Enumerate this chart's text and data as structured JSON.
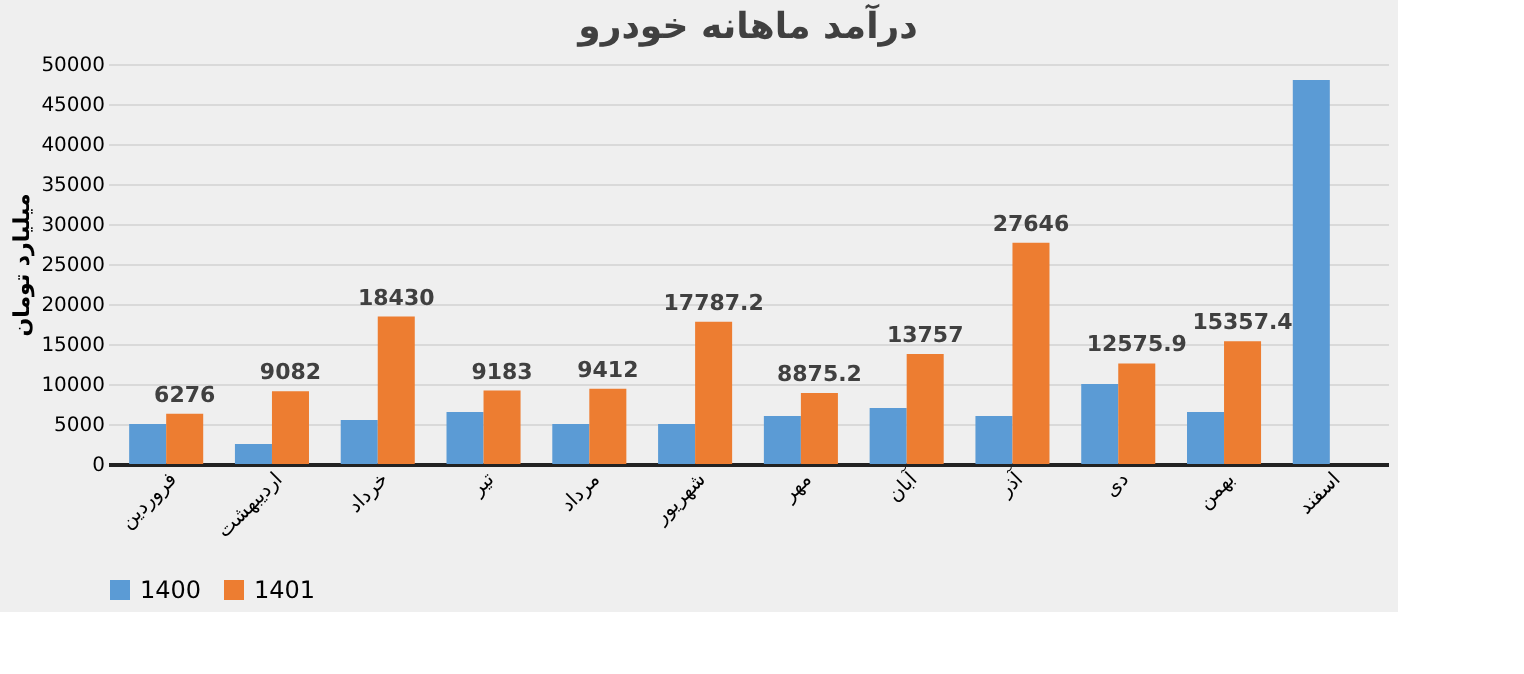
{
  "chart_data": {
    "type": "bar",
    "title": "درآمد ماهانه خودرو",
    "ylabel": "میلیارد تومان",
    "categories": [
      "فروردین",
      "اردیبهشت",
      "خرداد",
      "تیر",
      "مرداد",
      "شهریور",
      "مهر",
      "آبان",
      "آذر",
      "دی",
      "بهمن",
      "اسفند"
    ],
    "series": [
      {
        "name": "1400",
        "color": "#5b9bd5",
        "values": [
          5000,
          2500,
          5500,
          6500,
          5000,
          5000,
          6000,
          7000,
          6000,
          10000,
          6500,
          48000
        ]
      },
      {
        "name": "1401",
        "color": "#ed7d31",
        "values": [
          6276,
          9082,
          18430,
          9183,
          9412,
          17787.2,
          8875.2,
          13757,
          27646,
          12575.9,
          15357.4,
          null
        ],
        "value_labels": [
          "6276",
          "9082",
          "18430",
          "9183",
          "9412",
          "17787.2",
          "8875.2",
          "13757",
          "27646",
          "12575.9",
          "15357.4",
          null
        ]
      }
    ],
    "ylim": [
      0,
      50000
    ],
    "yticks": [
      0,
      5000,
      10000,
      15000,
      20000,
      25000,
      30000,
      35000,
      40000,
      45000,
      50000
    ],
    "grid": "y",
    "legend": "bottom"
  }
}
